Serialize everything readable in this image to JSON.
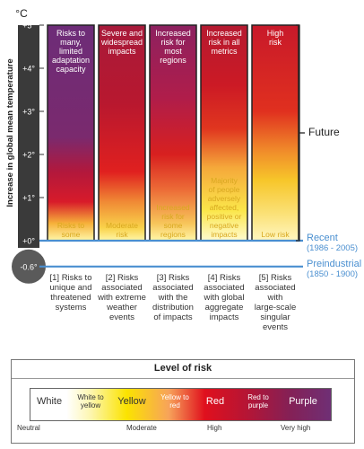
{
  "chart_data": {
    "type": "bar",
    "ylabel": "Increase in global mean temperature",
    "yunit": "°C",
    "ylim": [
      -0.6,
      5
    ],
    "yticks": [
      "+5°",
      "+4°",
      "+3°",
      "+2°",
      "+1°",
      "+0°",
      "-0.6°"
    ],
    "categories": [
      "[1] Risks to unique and threatened systems",
      "[2] Risks associated with extreme weather events",
      "[3] Risks associated with the distribution of impacts",
      "[4] Risks associated with global aggregate impacts",
      "[5] Risks associated with large-scale singular events"
    ],
    "category_lines": [
      [
        "[1] Risks to",
        "unique and",
        "threatened",
        "systems"
      ],
      [
        "[2] Risks",
        "associated",
        "with extreme",
        "weather",
        "events"
      ],
      [
        "[3] Risks",
        "associated",
        "with the",
        "distribution",
        "of impacts"
      ],
      [
        "[4] Risks",
        "associated",
        "with global",
        "aggregate",
        "impacts"
      ],
      [
        "[5] Risks",
        "associated",
        "with",
        "large-scale",
        "singular",
        "events"
      ]
    ],
    "top_labels": [
      [
        "Risks to",
        "many,",
        "limited",
        "adaptation",
        "capacity"
      ],
      [
        "Severe and",
        "widespread",
        "impacts"
      ],
      [
        "Increased",
        "risk for",
        "most",
        "regions"
      ],
      [
        "Increased",
        "risk in all",
        "metrics"
      ],
      [
        "High",
        "risk"
      ]
    ],
    "low_labels": [
      [
        "Risks to",
        "some"
      ],
      [
        "Moderate",
        "risk"
      ],
      [
        "Increased",
        "risk for",
        "some",
        "regions"
      ],
      [
        "Majority",
        "of people",
        "adversely",
        "affected,",
        "positive or",
        "negative",
        "impacts"
      ],
      [
        "Low risk"
      ]
    ],
    "risk_gradient_stops": [
      [
        {
          "t": 0,
          "c": "#fff7a8"
        },
        {
          "t": 0.4,
          "c": "#f6b13a"
        },
        {
          "t": 0.9,
          "c": "#d81b2a"
        },
        {
          "t": 1.6,
          "c": "#b2183c"
        },
        {
          "t": 2.4,
          "c": "#7a2a6e"
        },
        {
          "t": 5,
          "c": "#6d2c78"
        }
      ],
      [
        {
          "t": 0,
          "c": "#fff7a8"
        },
        {
          "t": 0.3,
          "c": "#f9d24a"
        },
        {
          "t": 0.9,
          "c": "#f08a35"
        },
        {
          "t": 1.6,
          "c": "#e0201f"
        },
        {
          "t": 3.2,
          "c": "#b8182f"
        },
        {
          "t": 5,
          "c": "#a81a3a"
        }
      ],
      [
        {
          "t": 0,
          "c": "#fff7a8"
        },
        {
          "t": 0.4,
          "c": "#f7c55a"
        },
        {
          "t": 1.2,
          "c": "#ec6a36"
        },
        {
          "t": 2.0,
          "c": "#d8201f"
        },
        {
          "t": 3.3,
          "c": "#b01d4a"
        },
        {
          "t": 5,
          "c": "#8d2160"
        }
      ],
      [
        {
          "t": 0,
          "c": "#fffad0"
        },
        {
          "t": 0.7,
          "c": "#fbe64a"
        },
        {
          "t": 1.7,
          "c": "#f5a83a"
        },
        {
          "t": 2.6,
          "c": "#e0361f"
        },
        {
          "t": 3.6,
          "c": "#cc1a25"
        },
        {
          "t": 5,
          "c": "#b51a30"
        }
      ],
      [
        {
          "t": 0,
          "c": "#fff6c0"
        },
        {
          "t": 0.6,
          "c": "#fbe27a"
        },
        {
          "t": 1.4,
          "c": "#f7c62a"
        },
        {
          "t": 2.1,
          "c": "#f08a2a"
        },
        {
          "t": 3.0,
          "c": "#e0301f"
        },
        {
          "t": 5,
          "c": "#c8192a"
        }
      ]
    ],
    "reference_lines": [
      {
        "label": "Recent",
        "sublabel": "(1986 - 2005)",
        "value": 0
      },
      {
        "label": "Preindustrial",
        "sublabel": "(1850 - 1900)",
        "value": -0.6
      }
    ],
    "bracket_label": "Future",
    "legend": {
      "title": "Level of risk",
      "items": [
        "White",
        "White to yellow",
        "Yellow",
        "Yellow to red",
        "Red",
        "Red to purple",
        "Purple"
      ],
      "scale": [
        "Neutral",
        "Moderate",
        "High",
        "Very high"
      ]
    }
  },
  "colors": {
    "reference_line": "#4a8fd0",
    "axis_band": "#3a3a3a",
    "preindustrial_circle": "#5a5a5a",
    "low_label_text": "#d8a820"
  }
}
